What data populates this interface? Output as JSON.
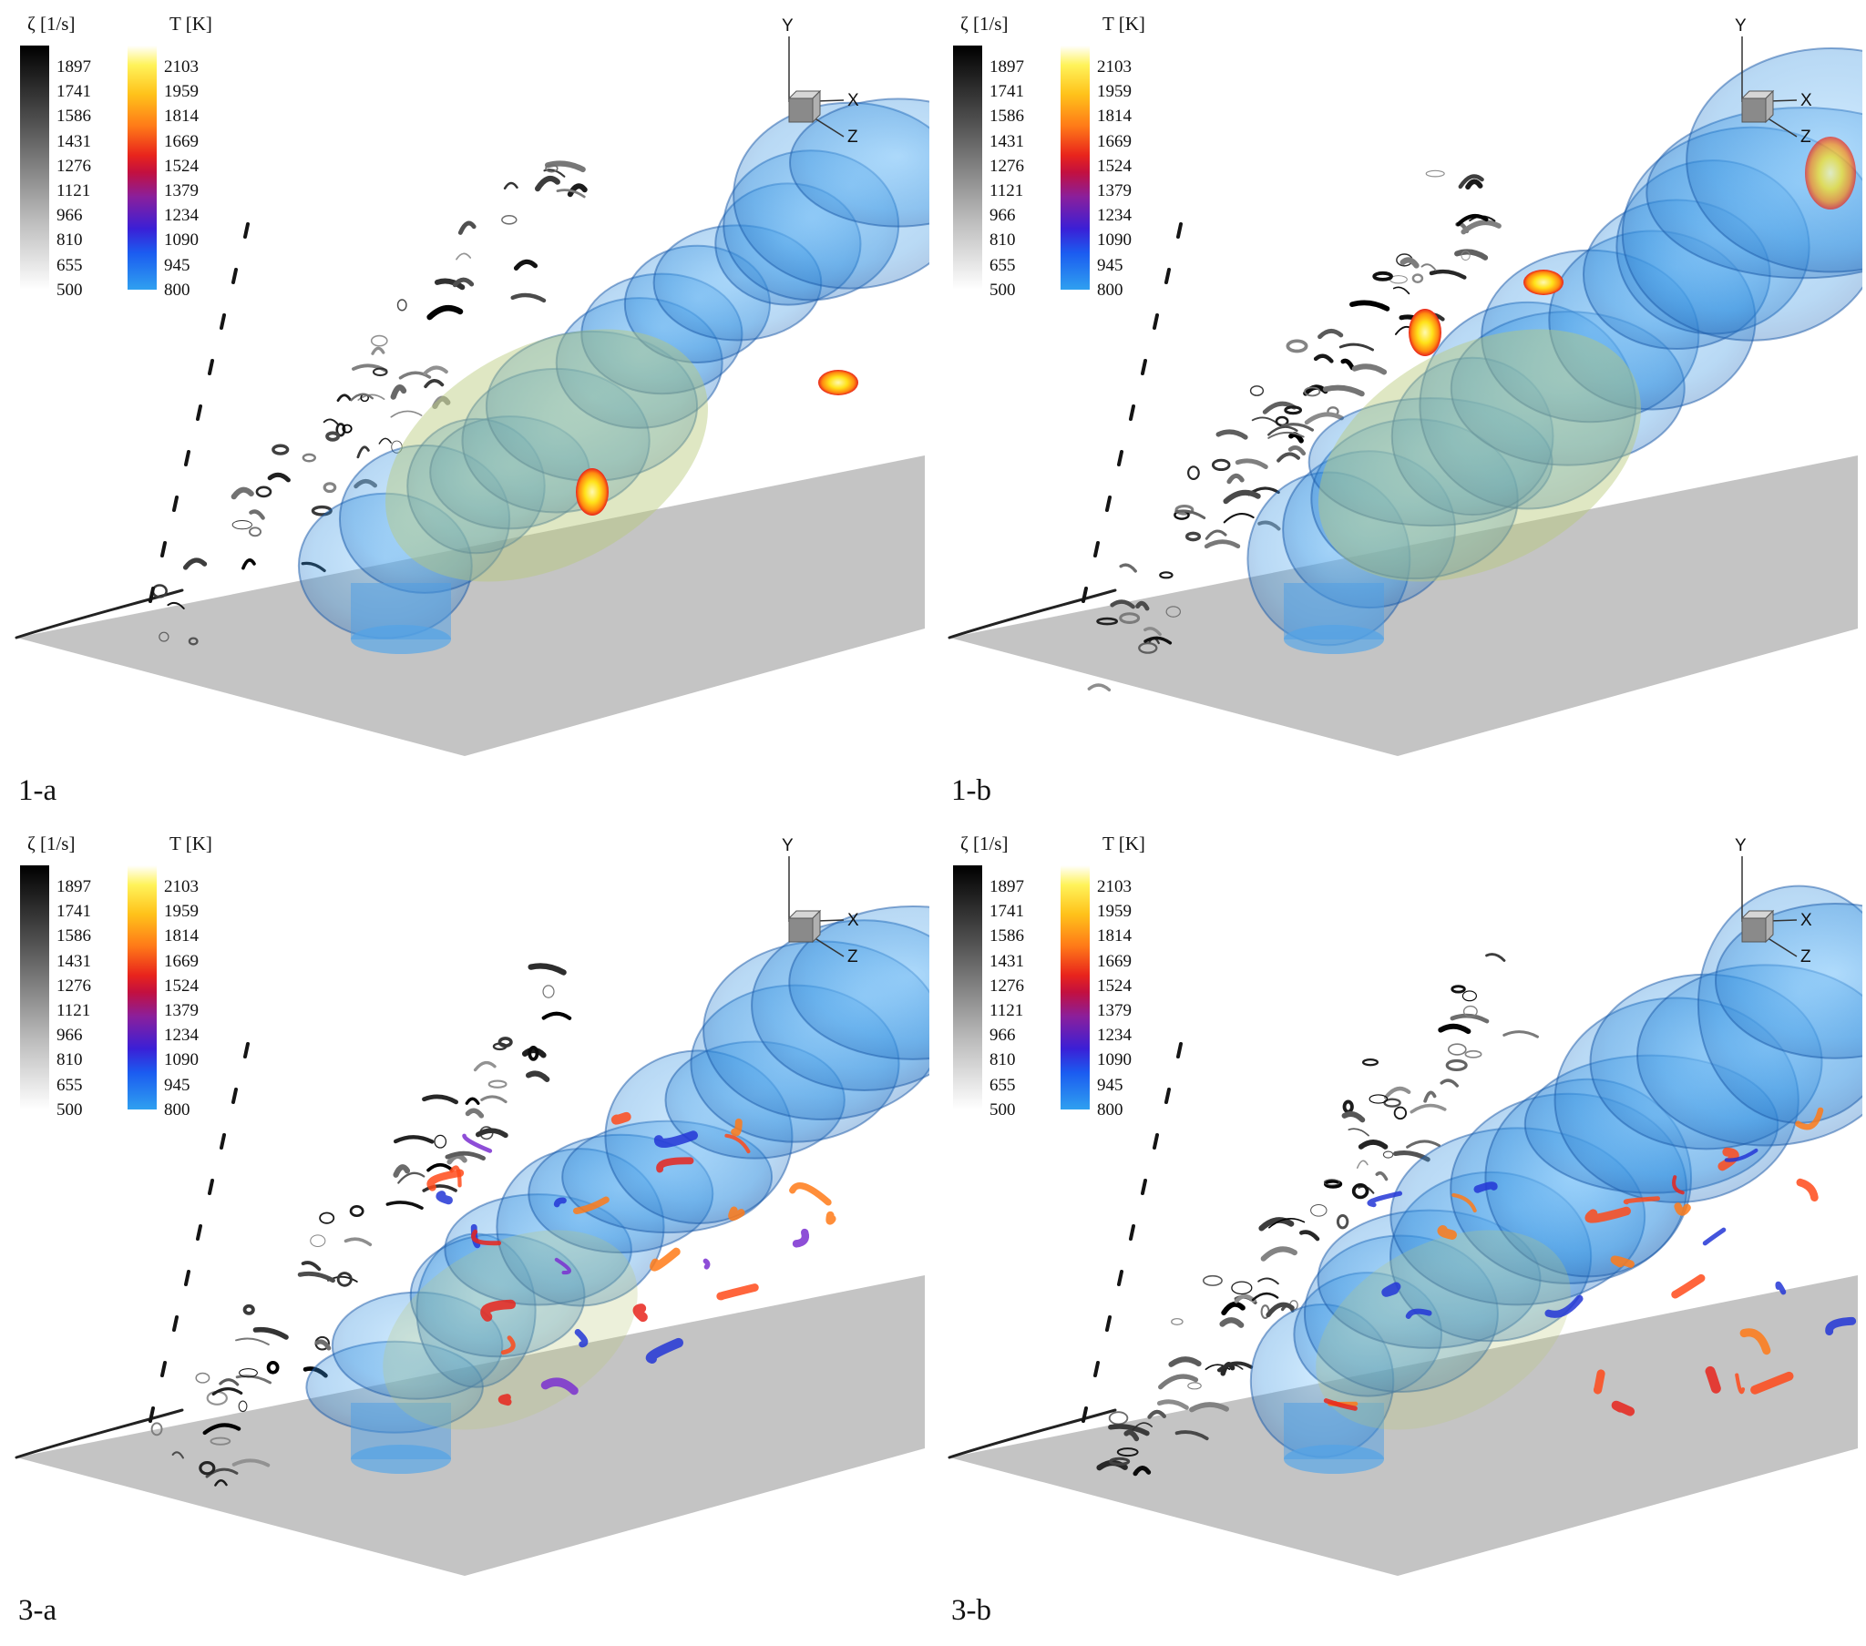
{
  "legends": {
    "vorticity": {
      "title": "ζ [1/s]",
      "ticks": [
        "1897",
        "1741",
        "1586",
        "1431",
        "1276",
        "1121",
        "966",
        "810",
        "655",
        "500"
      ]
    },
    "temperature": {
      "title": "T [K]",
      "ticks": [
        "2103",
        "1959",
        "1814",
        "1669",
        "1524",
        "1379",
        "1234",
        "1090",
        "945",
        "800"
      ]
    }
  },
  "axes_triad": {
    "y": "Y",
    "x": "X",
    "z": "Z"
  },
  "panels": [
    {
      "label": "1-a"
    },
    {
      "label": "1-b"
    },
    {
      "label": "3-a"
    },
    {
      "label": "3-b"
    }
  ],
  "colors": {
    "floor_plate": "#c4c4c4",
    "isosurface_blue": "#2f8fe0",
    "core_green": "#b9c979",
    "hot_yellow": "#ffe21a",
    "hot_red": "#e8241c",
    "vorticity_black": "#141414"
  }
}
